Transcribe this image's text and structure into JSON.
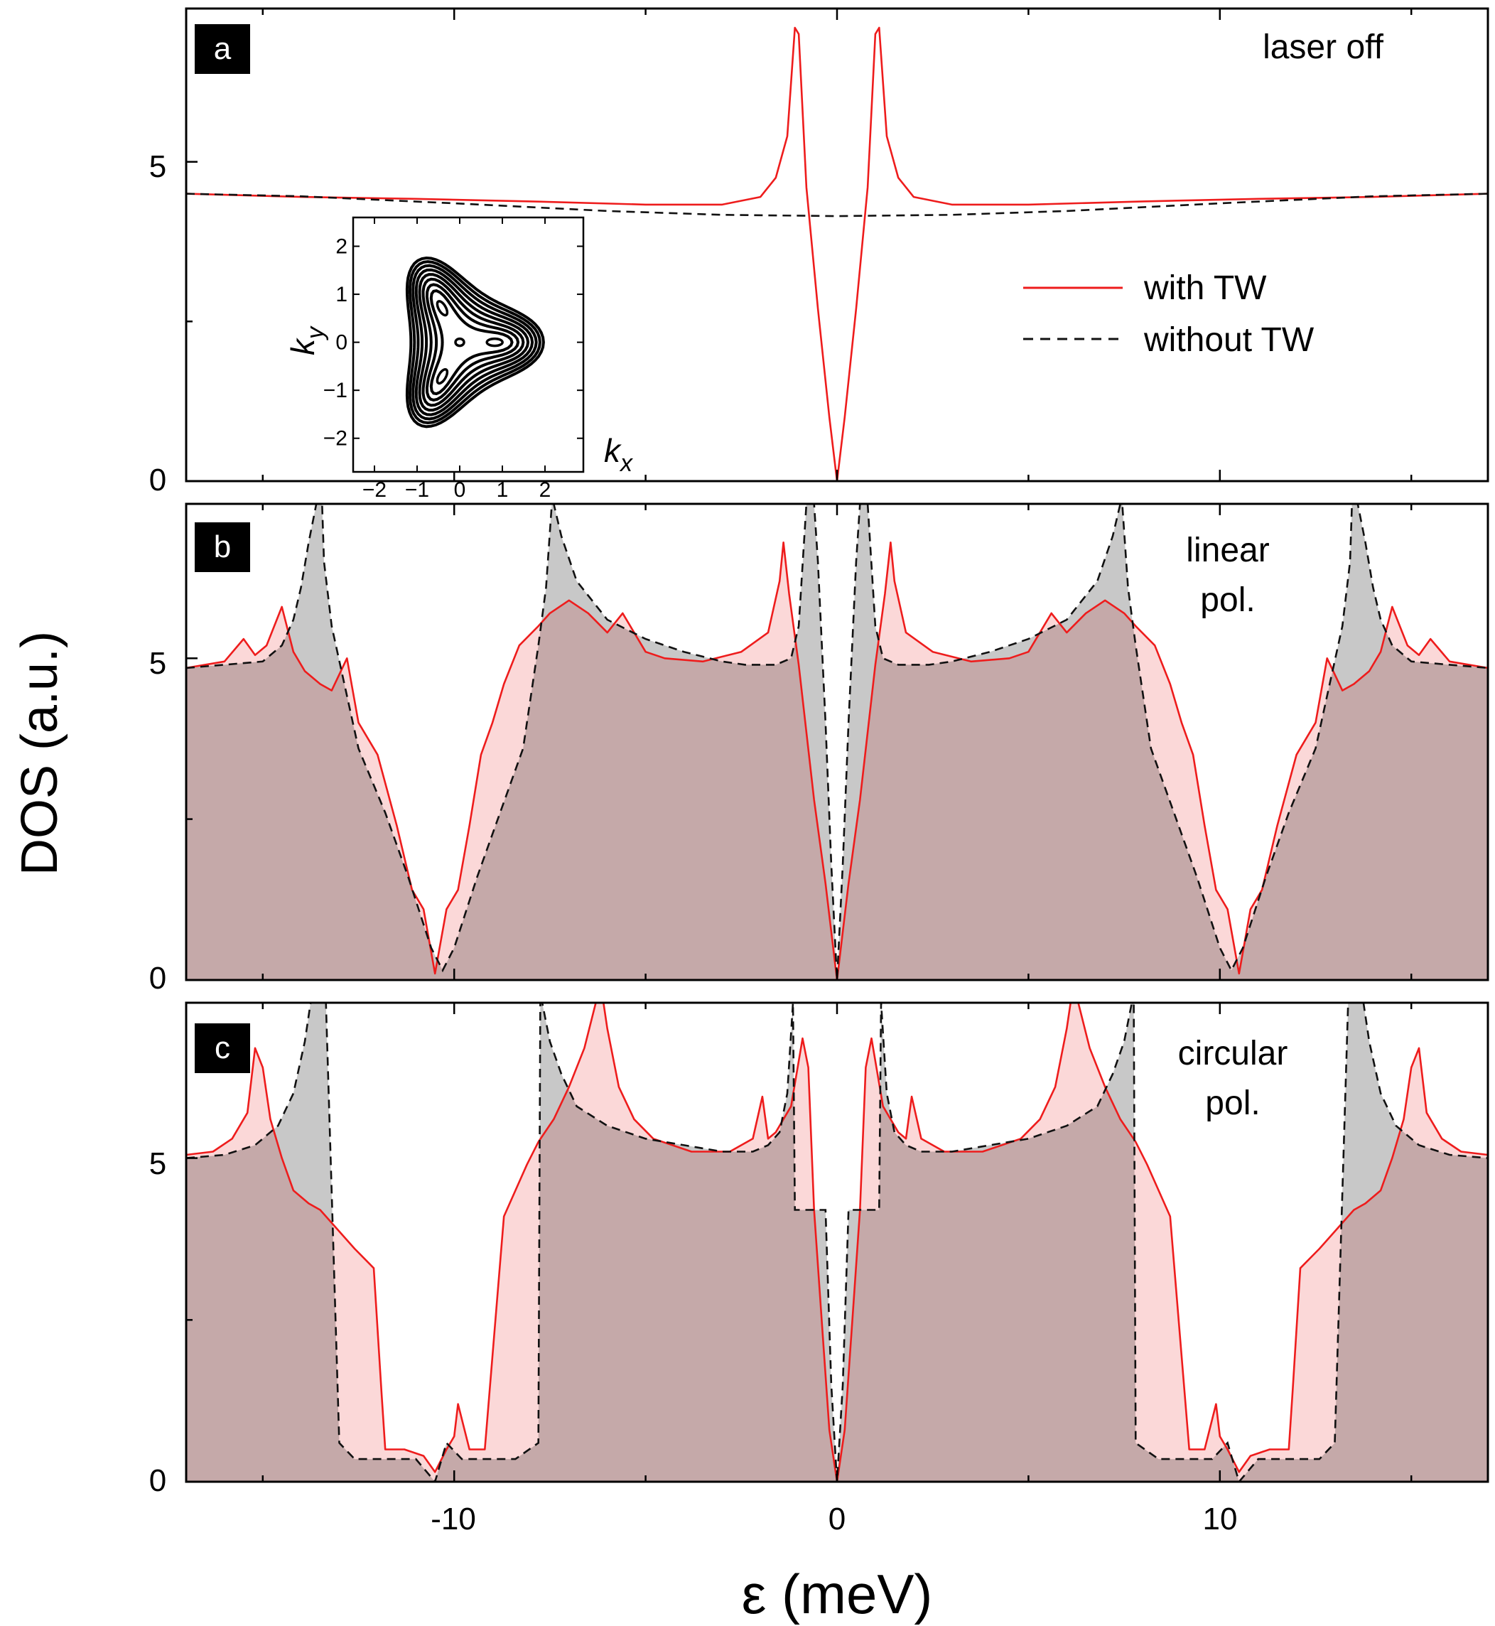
{
  "figure": {
    "ylabel": "DOS (a.u.)",
    "xlabel": "ε (meV)",
    "xlim": [
      -17,
      17
    ],
    "ylim": [
      0,
      7.4
    ],
    "xticks": [
      -10,
      0,
      10
    ],
    "xtick_labels": [
      "-10",
      "0",
      "10"
    ],
    "yticks": [
      0,
      5
    ],
    "ytick_labels": [
      "0",
      "5"
    ]
  },
  "colors": {
    "with_tw": "#ee1c1c",
    "with_tw_fill": "#f8b8b8",
    "without_tw": "#111111",
    "without_tw_fill": "#c8c8c8",
    "overlap_fill": "#c9a0a0",
    "badge_bg": "#000000",
    "badge_text": "#ffffff"
  },
  "legend": {
    "with_tw": "with TW",
    "without_tw": "without TW"
  },
  "panels": [
    {
      "letter": "a",
      "annotation": [
        "laser off"
      ]
    },
    {
      "letter": "b",
      "annotation": [
        "linear",
        "pol."
      ]
    },
    {
      "letter": "c",
      "annotation": [
        "circular",
        "pol."
      ]
    }
  ],
  "inset": {
    "xlabel": "k",
    "xlabel_sub": "x",
    "ylabel": "k",
    "ylabel_sub": "y",
    "xticks": [
      -2,
      -1,
      0,
      1,
      2
    ],
    "xtick_labels": [
      "−2",
      "−1",
      "0",
      "1",
      "2"
    ],
    "yticks": [
      2,
      1,
      0,
      -1,
      -2
    ],
    "ytick_labels": [
      "2",
      "1",
      "0",
      "−1",
      "−2"
    ],
    "xlim": [
      -2.5,
      2.9
    ],
    "ylim": [
      -2.7,
      2.6
    ],
    "contour_levels": [
      0.3,
      0.5,
      0.75,
      1.0,
      1.25,
      1.5,
      1.75,
      2.0,
      2.25
    ]
  },
  "chart_data": [
    {
      "type": "line",
      "panel": "a",
      "title": "laser off",
      "xlabel": "ε (meV)",
      "ylabel": "DOS (a.u.)",
      "xlim": [
        -17,
        17
      ],
      "ylim": [
        0,
        7.4
      ],
      "series": [
        {
          "name": "with TW",
          "style": "solid",
          "x": [
            -17,
            -14,
            -11,
            -8,
            -5,
            -3,
            -2,
            -1.6,
            -1.3,
            -1.1,
            -1.0,
            -0.8,
            -0.5,
            -0.2,
            0,
            0.2,
            0.5,
            0.8,
            1.0,
            1.1,
            1.3,
            1.6,
            2,
            3,
            5,
            8,
            11,
            14,
            17
          ],
          "y": [
            4.5,
            4.45,
            4.42,
            4.38,
            4.33,
            4.33,
            4.45,
            4.75,
            5.4,
            7.1,
            7.0,
            4.6,
            2.7,
            1.0,
            0,
            1.0,
            2.7,
            4.6,
            7.0,
            7.1,
            5.4,
            4.75,
            4.45,
            4.33,
            4.33,
            4.38,
            4.42,
            4.45,
            4.5
          ]
        },
        {
          "name": "without TW",
          "style": "dashed",
          "x": [
            -17,
            -14,
            -10,
            -6,
            -3,
            0,
            3,
            6,
            10,
            14,
            17
          ],
          "y": [
            4.5,
            4.46,
            4.35,
            4.23,
            4.17,
            4.15,
            4.17,
            4.23,
            4.35,
            4.46,
            4.5
          ]
        }
      ]
    },
    {
      "type": "area",
      "panel": "b",
      "title": "linear pol.",
      "xlabel": "ε (meV)",
      "ylabel": "DOS (a.u.)",
      "xlim": [
        -17,
        17
      ],
      "ylim": [
        0,
        7.4
      ],
      "series": [
        {
          "name": "with TW",
          "style": "solid",
          "x": [
            -17,
            -16,
            -15.5,
            -15.2,
            -14.9,
            -14.5,
            -14.2,
            -13.9,
            -13.5,
            -13.2,
            -12.8,
            -12.5,
            -12,
            -11.5,
            -11.1,
            -10.8,
            -10.5,
            -10.2,
            -9.9,
            -9.6,
            -9.3,
            -9,
            -8.7,
            -8.3,
            -7.8,
            -7.5,
            -7,
            -6.5,
            -6,
            -5.6,
            -5.2,
            -5,
            -4.5,
            -3.5,
            -2.5,
            -1.8,
            -1.5,
            -1.4,
            -1.25,
            -1.0,
            -0.6,
            -0.3,
            0,
            0.3,
            0.6,
            1.0,
            1.25,
            1.4,
            1.5,
            1.8,
            2.5,
            3.5,
            4.5,
            5,
            5.2,
            5.6,
            6,
            6.5,
            7,
            7.5,
            7.8,
            8.3,
            8.7,
            9,
            9.3,
            9.6,
            9.9,
            10.2,
            10.5,
            10.8,
            11.1,
            11.5,
            12,
            12.5,
            12.8,
            13.2,
            13.5,
            13.9,
            14.2,
            14.5,
            14.9,
            15.2,
            15.5,
            16,
            17
          ],
          "y": [
            4.85,
            4.95,
            5.3,
            5.05,
            5.2,
            5.8,
            5.1,
            4.8,
            4.6,
            4.5,
            5.0,
            4.0,
            3.5,
            2.4,
            1.4,
            1.1,
            0.1,
            1.1,
            1.4,
            2.4,
            3.5,
            4.0,
            4.6,
            5.2,
            5.5,
            5.7,
            5.9,
            5.7,
            5.4,
            5.7,
            5.3,
            5.1,
            5.0,
            4.95,
            5.1,
            5.4,
            6.2,
            6.8,
            6.0,
            4.9,
            2.8,
            1.5,
            0,
            1.5,
            2.8,
            4.9,
            6.0,
            6.8,
            6.2,
            5.4,
            5.1,
            4.95,
            5.0,
            5.1,
            5.3,
            5.7,
            5.4,
            5.7,
            5.9,
            5.7,
            5.5,
            5.2,
            4.6,
            4.0,
            3.5,
            2.4,
            1.4,
            1.1,
            0.1,
            1.1,
            1.4,
            2.4,
            3.5,
            4.0,
            5.0,
            4.5,
            4.6,
            4.8,
            5.1,
            5.8,
            5.2,
            5.05,
            5.3,
            4.95,
            4.85
          ]
        },
        {
          "name": "without TW",
          "style": "dashed",
          "x": [
            -17,
            -16,
            -15,
            -14.5,
            -14.2,
            -14.0,
            -13.8,
            -13.6,
            -13.45,
            -13.4,
            -13.2,
            -12.5,
            -11.8,
            -11.2,
            -10.6,
            -10.3,
            -10.0,
            -9.4,
            -8.8,
            -8.2,
            -7.8,
            -7.6,
            -7.45,
            -7.4,
            -7.2,
            -6.8,
            -6,
            -5,
            -4,
            -3,
            -2.4,
            -1.6,
            -1.2,
            -1.0,
            -0.8,
            -0.6,
            -0.5,
            -0.3,
            -0.15,
            0,
            0.15,
            0.3,
            0.5,
            0.6,
            0.8,
            1.0,
            1.2,
            1.6,
            2.4,
            3,
            4,
            5,
            6,
            6.8,
            7.2,
            7.4,
            7.45,
            7.6,
            7.8,
            8.2,
            8.8,
            9.4,
            10.0,
            10.3,
            10.6,
            11.2,
            11.8,
            12.5,
            13.2,
            13.4,
            13.45,
            13.6,
            13.8,
            14.0,
            14.2,
            14.5,
            15,
            16,
            17
          ],
          "y": [
            4.85,
            4.9,
            4.95,
            5.2,
            5.6,
            6.1,
            6.8,
            7.4,
            7.4,
            6.5,
            5.5,
            3.6,
            2.6,
            1.6,
            0.5,
            0.15,
            0.5,
            1.6,
            2.6,
            3.6,
            5.2,
            6.1,
            7.4,
            7.4,
            6.9,
            6.2,
            5.6,
            5.3,
            5.1,
            4.95,
            4.9,
            4.9,
            5.0,
            5.5,
            7.4,
            7.4,
            6.5,
            4.0,
            1.8,
            0,
            1.8,
            4.0,
            6.5,
            7.4,
            7.4,
            5.5,
            5.0,
            4.9,
            4.9,
            4.95,
            5.1,
            5.3,
            5.6,
            6.2,
            6.9,
            7.4,
            7.4,
            6.1,
            5.2,
            3.6,
            2.6,
            1.6,
            0.5,
            0.15,
            0.5,
            1.6,
            2.6,
            3.6,
            5.5,
            6.5,
            7.4,
            7.4,
            6.8,
            6.1,
            5.6,
            5.2,
            4.95,
            4.9,
            4.85
          ]
        }
      ]
    },
    {
      "type": "area",
      "panel": "c",
      "title": "circular pol.",
      "xlabel": "ε (meV)",
      "ylabel": "DOS (a.u.)",
      "xlim": [
        -17,
        17
      ],
      "ylim": [
        0,
        7.4
      ],
      "series": [
        {
          "name": "with TW",
          "style": "solid",
          "x": [
            -17,
            -16.3,
            -15.8,
            -15.4,
            -15.2,
            -15.0,
            -14.8,
            -14.5,
            -14.2,
            -13.8,
            -13.5,
            -13.2,
            -12.6,
            -12.1,
            -11.9,
            -11.8,
            -11.3,
            -10.8,
            -10.5,
            -10.2,
            -10.0,
            -9.9,
            -9.6,
            -9.2,
            -8.7,
            -8.4,
            -8.1,
            -7.8,
            -7.4,
            -7.0,
            -6.6,
            -6.3,
            -6.1,
            -6.0,
            -5.7,
            -5.3,
            -4.8,
            -3.8,
            -2.8,
            -2.2,
            -1.95,
            -1.8,
            -1.6,
            -1.2,
            -0.9,
            -0.75,
            -0.6,
            -0.4,
            -0.2,
            -0.05,
            0,
            0.05,
            0.2,
            0.4,
            0.6,
            0.75,
            0.9,
            1.2,
            1.6,
            1.8,
            1.95,
            2.2,
            2.8,
            3.8,
            4.8,
            5.3,
            5.7,
            6.0,
            6.1,
            6.3,
            6.6,
            7.0,
            7.4,
            7.8,
            8.1,
            8.4,
            8.7,
            9.2,
            9.6,
            9.9,
            10.0,
            10.2,
            10.5,
            10.8,
            11.3,
            11.8,
            11.9,
            12.1,
            12.6,
            13.2,
            13.5,
            13.8,
            14.2,
            14.5,
            14.8,
            15.0,
            15.2,
            15.4,
            15.8,
            16.3,
            17
          ],
          "y": [
            5.05,
            5.1,
            5.3,
            5.7,
            6.7,
            6.4,
            5.6,
            5.0,
            4.5,
            4.3,
            4.2,
            4.0,
            3.6,
            3.3,
            1.4,
            0.5,
            0.5,
            0.4,
            0.15,
            0.5,
            0.7,
            1.2,
            0.5,
            0.5,
            4.1,
            4.5,
            4.9,
            5.25,
            5.6,
            6.1,
            6.7,
            7.4,
            7.4,
            7.0,
            6.1,
            5.6,
            5.3,
            5.1,
            5.1,
            5.3,
            5.95,
            5.3,
            5.4,
            5.8,
            6.85,
            6.4,
            4.2,
            2.5,
            0.8,
            0.2,
            0,
            0.2,
            0.8,
            2.5,
            4.2,
            6.4,
            6.85,
            5.8,
            5.4,
            5.3,
            5.95,
            5.3,
            5.1,
            5.1,
            5.3,
            5.6,
            6.1,
            7.0,
            7.4,
            7.4,
            6.7,
            6.1,
            5.6,
            5.25,
            4.9,
            4.5,
            4.1,
            0.5,
            0.5,
            1.2,
            0.7,
            0.5,
            0.15,
            0.4,
            0.5,
            0.5,
            1.4,
            3.3,
            3.6,
            4.0,
            4.2,
            4.3,
            4.5,
            5.0,
            5.6,
            6.4,
            6.7,
            5.7,
            5.3,
            5.1,
            5.05
          ]
        },
        {
          "name": "without TW",
          "style": "dashed",
          "x": [
            -17,
            -16,
            -15.2,
            -14.6,
            -14.2,
            -13.9,
            -13.75,
            -13.4,
            -13.35,
            -13.0,
            -12.6,
            -12.0,
            -11.0,
            -10.5,
            -10.2,
            -9.8,
            -9.2,
            -8.4,
            -7.8,
            -7.75,
            -7.7,
            -7.5,
            -7.2,
            -6.8,
            -6.0,
            -5.0,
            -4.0,
            -3.0,
            -2.2,
            -1.8,
            -1.5,
            -1.3,
            -1.15,
            -1.1,
            -1.05,
            -0.9,
            -0.3,
            -0.15,
            0,
            0.15,
            0.3,
            0.9,
            1.05,
            1.1,
            1.15,
            1.3,
            1.5,
            1.8,
            2.2,
            3.0,
            4.0,
            5.0,
            6.0,
            6.8,
            7.2,
            7.5,
            7.7,
            7.75,
            7.8,
            8.4,
            9.2,
            9.8,
            10.2,
            10.5,
            11.0,
            12.0,
            12.6,
            13.0,
            13.35,
            13.4,
            13.75,
            13.9,
            14.2,
            14.6,
            15.2,
            16,
            17
          ],
          "y": [
            5.0,
            5.05,
            5.2,
            5.5,
            6.0,
            6.8,
            7.4,
            7.4,
            7.4,
            0.6,
            0.35,
            0.35,
            0.35,
            0.0,
            0.6,
            0.35,
            0.35,
            0.35,
            0.6,
            7.4,
            7.4,
            6.8,
            6.3,
            5.8,
            5.5,
            5.3,
            5.2,
            5.1,
            5.1,
            5.2,
            5.4,
            6.0,
            7.4,
            4.2,
            4.2,
            4.2,
            4.2,
            1.5,
            0,
            1.5,
            4.2,
            4.2,
            4.2,
            4.2,
            7.4,
            6.0,
            5.4,
            5.2,
            5.1,
            5.1,
            5.2,
            5.3,
            5.5,
            5.8,
            6.3,
            6.8,
            7.4,
            7.4,
            0.6,
            0.35,
            0.35,
            0.35,
            0.6,
            0.0,
            0.35,
            0.35,
            0.35,
            0.6,
            7.4,
            7.4,
            7.4,
            6.8,
            6.0,
            5.5,
            5.2,
            5.05,
            5.0
          ]
        }
      ]
    }
  ]
}
